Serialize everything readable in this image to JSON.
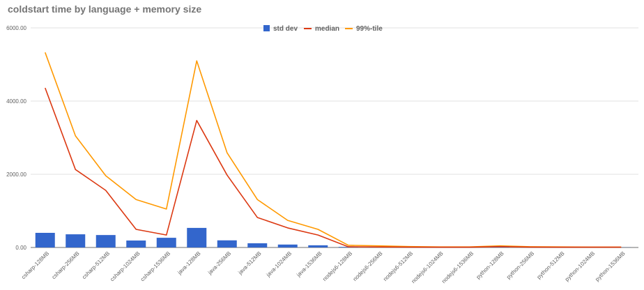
{
  "chart_data": {
    "type": "bar",
    "title": "coldstart time by language + memory size",
    "xlabel": "",
    "ylabel": "",
    "ylim": [
      0,
      6000
    ],
    "yticks": [
      "0.00",
      "2000.00",
      "4000.00",
      "6000.00"
    ],
    "grid": true,
    "legend_position": "top",
    "categories": [
      "csharp-128MB",
      "csharp-256MB",
      "csharp-512MB",
      "csharp-1024MB",
      "csharp-1536MB",
      "java-128MB",
      "java-256MB",
      "java-512MB",
      "java-1024MB",
      "java-1536MB",
      "nodejs6-128MB",
      "nodejs6-256MB",
      "nodejs6-512MB",
      "nodejs6-1024MB",
      "nodejs6-1536MB",
      "python-128MB",
      "python-256MB",
      "python-512MB",
      "python-1024MB",
      "python-1536MB"
    ],
    "series": [
      {
        "name": "std dev",
        "kind": "bar",
        "color": "#3366cc",
        "values": [
          400,
          360,
          340,
          190,
          265,
          535,
          195,
          115,
          80,
          60,
          15,
          10,
          5,
          3,
          3,
          15,
          5,
          3,
          3,
          3
        ]
      },
      {
        "name": "median",
        "kind": "line",
        "color": "#dc3912",
        "values": [
          4360,
          2130,
          1560,
          495,
          340,
          3470,
          1980,
          820,
          535,
          340,
          20,
          15,
          10,
          8,
          8,
          25,
          10,
          8,
          8,
          8
        ]
      },
      {
        "name": "99%-tile",
        "kind": "line",
        "color": "#ff9900",
        "values": [
          5330,
          3050,
          1960,
          1310,
          1050,
          5100,
          2590,
          1310,
          740,
          495,
          60,
          45,
          25,
          15,
          15,
          45,
          20,
          15,
          12,
          12
        ]
      }
    ]
  },
  "legend": {
    "std": "std dev",
    "median": "median",
    "p99": "99%-tile"
  },
  "axis": {
    "y0": "0.00",
    "y1": "2000.00",
    "y2": "4000.00",
    "y3": "6000.00"
  }
}
